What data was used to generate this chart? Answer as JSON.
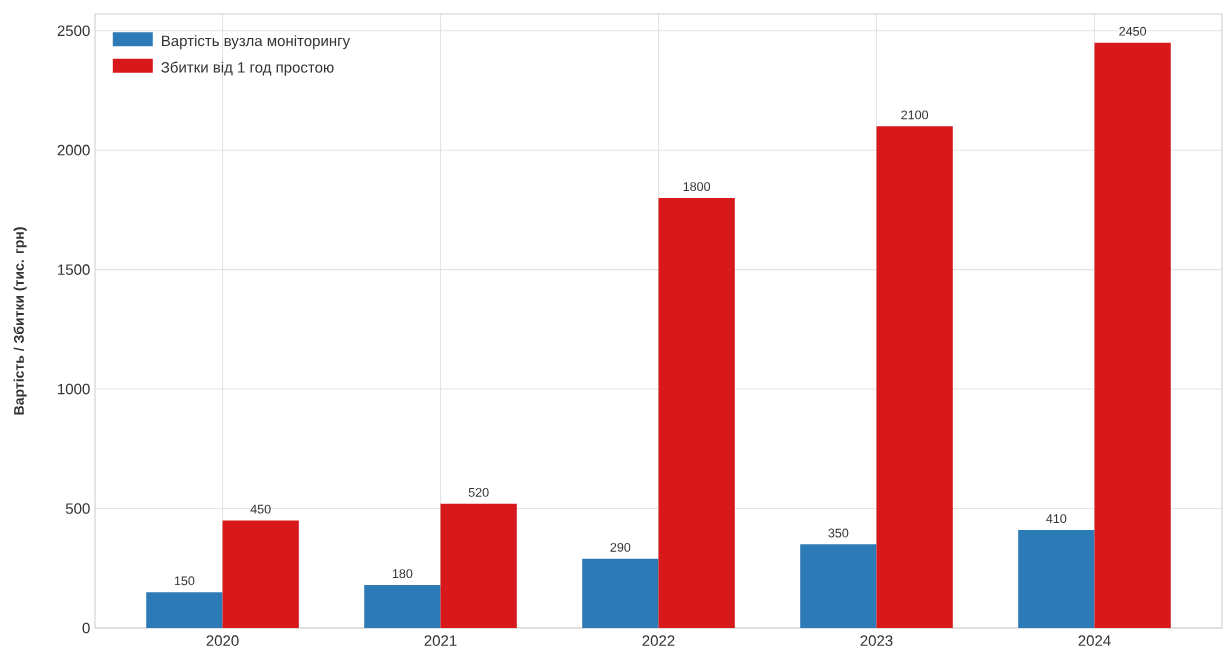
{
  "chart_data": {
    "type": "bar",
    "ylabel": "Вартість / Збитки (тис. грн)",
    "categories": [
      "2020",
      "2021",
      "2022",
      "2023",
      "2024"
    ],
    "series": [
      {
        "name": "Вартість вузла моніторингу",
        "color": "#2c7bb6",
        "values": [
          150,
          180,
          290,
          350,
          410
        ]
      },
      {
        "name": "Збитки від 1 год простою",
        "color": "#d7191c",
        "values": [
          450,
          520,
          1800,
          2100,
          2450
        ]
      }
    ],
    "ylim": [
      0,
      2570
    ],
    "yticks": [
      0,
      500,
      1000,
      1500,
      2000,
      2500
    ],
    "grid": true,
    "legend": "top left",
    "data_labels": true
  }
}
